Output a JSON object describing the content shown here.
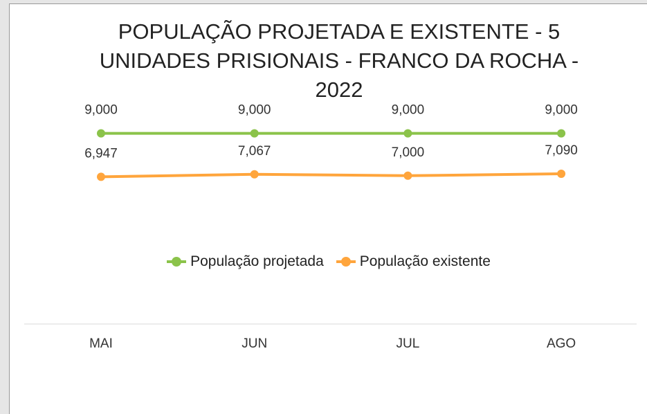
{
  "chart_data": {
    "type": "line",
    "title": "POPULAÇÃO PROJETADA E EXISTENTE - 5 UNIDADES PRISIONAIS - FRANCO DA ROCHA - 2022",
    "categories": [
      "MAI",
      "JUN",
      "JUL",
      "AGO"
    ],
    "series": [
      {
        "name": "População projetada",
        "color": "#8bc34a",
        "values": [
          9000,
          9000,
          9000,
          9000
        ],
        "value_labels": [
          "9,000",
          "9,000",
          "9,000",
          "9,000"
        ]
      },
      {
        "name": "População existente",
        "color": "#ffa53c",
        "values": [
          6947,
          7067,
          7000,
          7090
        ],
        "value_labels": [
          "6,947",
          "7,067",
          "7,000",
          "7,090"
        ]
      }
    ],
    "ylim": [
      0,
      10000
    ],
    "legend": "center"
  }
}
